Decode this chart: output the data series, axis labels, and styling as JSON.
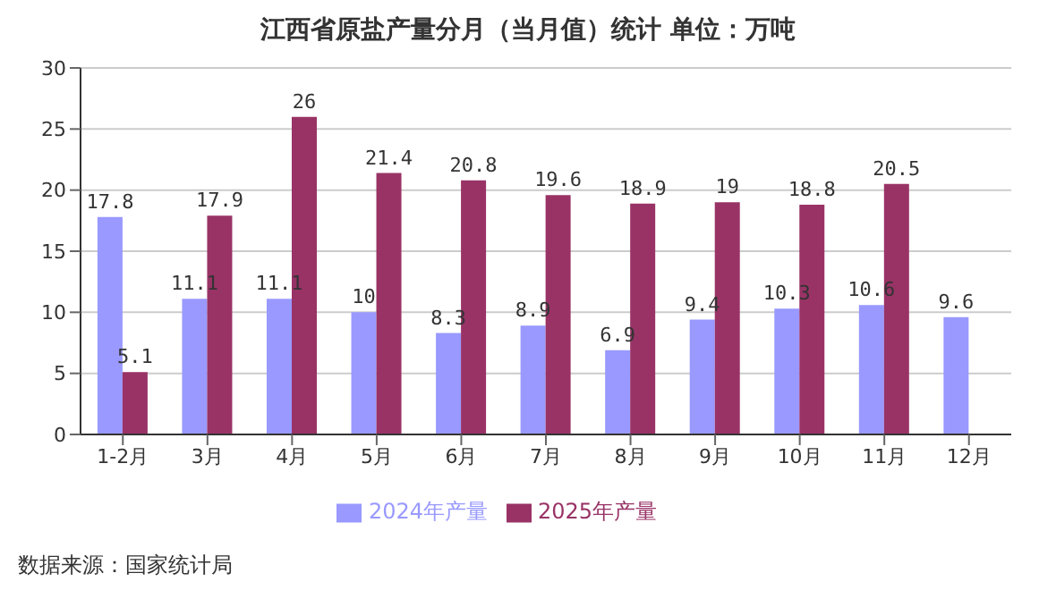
{
  "chart_data": {
    "type": "bar",
    "title": "江西省原盐产量分月（当月值）统计 单位：万吨",
    "categories": [
      "1-2月",
      "3月",
      "4月",
      "5月",
      "6月",
      "7月",
      "8月",
      "9月",
      "10月",
      "11月",
      "12月"
    ],
    "series": [
      {
        "name": "2024年产量",
        "color": "#9999ff",
        "values": [
          17.8,
          11.1,
          11.1,
          10,
          8.3,
          8.9,
          6.9,
          9.4,
          10.3,
          10.6,
          9.6
        ]
      },
      {
        "name": "2025年产量",
        "color": "#993366",
        "values": [
          5.1,
          17.9,
          26,
          21.4,
          20.8,
          19.6,
          18.9,
          19,
          18.8,
          20.5,
          null
        ]
      }
    ],
    "ylim": [
      0,
      30
    ],
    "yticks": [
      0,
      5,
      10,
      15,
      20,
      25,
      30
    ],
    "grid": "y",
    "legend": "bottom",
    "data_labels": true,
    "annotations": [
      "数据来源：国家统计局"
    ]
  }
}
